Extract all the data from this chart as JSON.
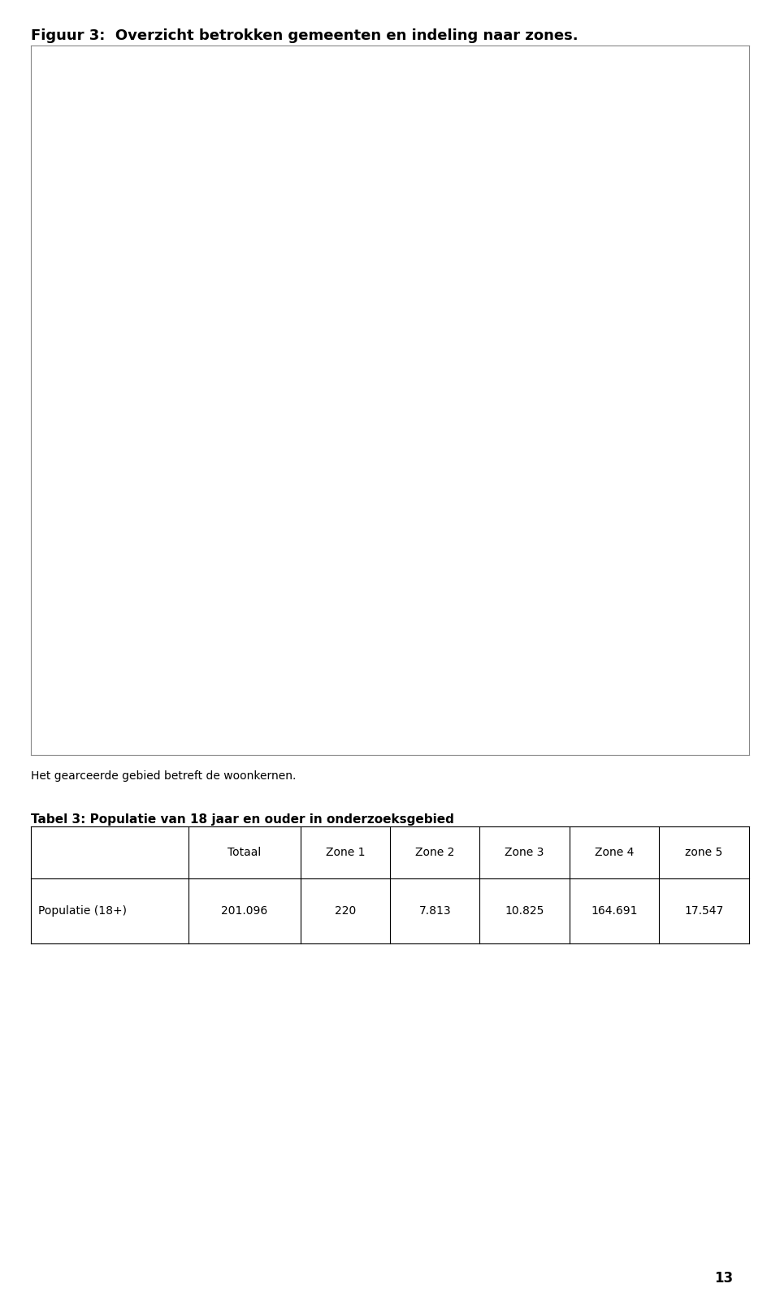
{
  "fig_title": "Figuur 3:  Overzicht betrokken gemeenten en indeling naar zones.",
  "caption_text": "Het gearceerde gebied betreft de woonkernen.",
  "table_title": "Tabel 3: Populatie van 18 jaar en ouder in onderzoeksgebied",
  "table_headers": [
    "",
    "Totaal",
    "Zone 1",
    "Zone 2",
    "Zone 3",
    "Zone 4",
    "zone 5"
  ],
  "table_rows": [
    [
      "Populatie (18+)",
      "201.096",
      "220",
      "7.813",
      "10.825",
      "164.691",
      "17.547"
    ]
  ],
  "page_number": "13",
  "bg_color": "#ffffff",
  "title_fontsize": 13,
  "table_title_fontsize": 11,
  "table_fontsize": 10,
  "caption_fontsize": 10
}
